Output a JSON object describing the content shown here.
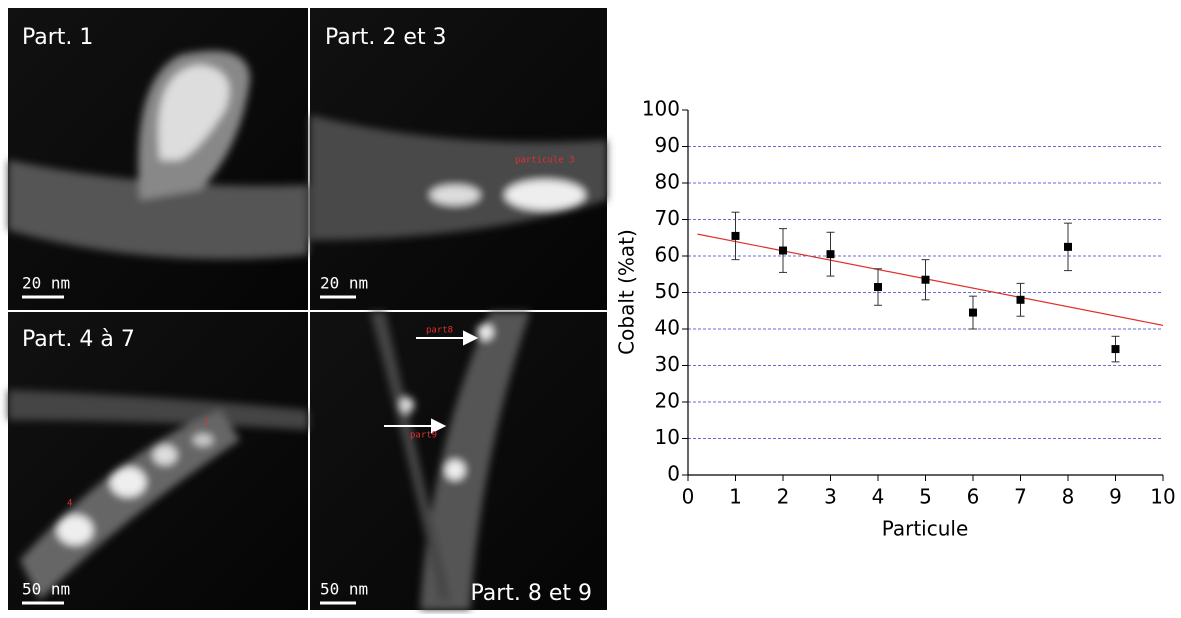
{
  "panels": [
    {
      "label": "Part. 1",
      "scale": "20 nm"
    },
    {
      "label": "Part. 2 et 3",
      "scale": "20 nm",
      "notes": [
        "particule 3"
      ]
    },
    {
      "label": "Part. 4 à 7",
      "scale": "50 nm",
      "notes": [
        "4",
        "7"
      ]
    },
    {
      "label": "Part. 8 et 9",
      "scale": "50 nm",
      "notes": [
        "part8",
        "part9"
      ]
    }
  ],
  "chart_data": {
    "type": "scatter",
    "x_label": "Particule",
    "y_label": "Cobalt (%at)",
    "xlim": [
      0,
      10
    ],
    "ylim": [
      0,
      100
    ],
    "xticks": [
      0,
      1,
      2,
      3,
      4,
      5,
      6,
      7,
      8,
      9,
      10
    ],
    "yticks": [
      0,
      10,
      20,
      30,
      40,
      50,
      60,
      70,
      80,
      90,
      100
    ],
    "grid": true,
    "grid_color": "#3a3acc",
    "series": [
      {
        "color": "#000000",
        "x": [
          1,
          2,
          3,
          4,
          5,
          6,
          7,
          8,
          9
        ],
        "values": [
          65.5,
          61.5,
          60.5,
          51.5,
          53.5,
          44.5,
          48,
          62.5,
          34.5
        ],
        "errors": [
          6.5,
          6,
          6,
          5,
          5.5,
          4.5,
          4.5,
          6.5,
          3.5
        ]
      }
    ],
    "fit": {
      "color": "#e0302a",
      "x": [
        0.2,
        10
      ],
      "values": [
        66,
        41
      ]
    }
  }
}
